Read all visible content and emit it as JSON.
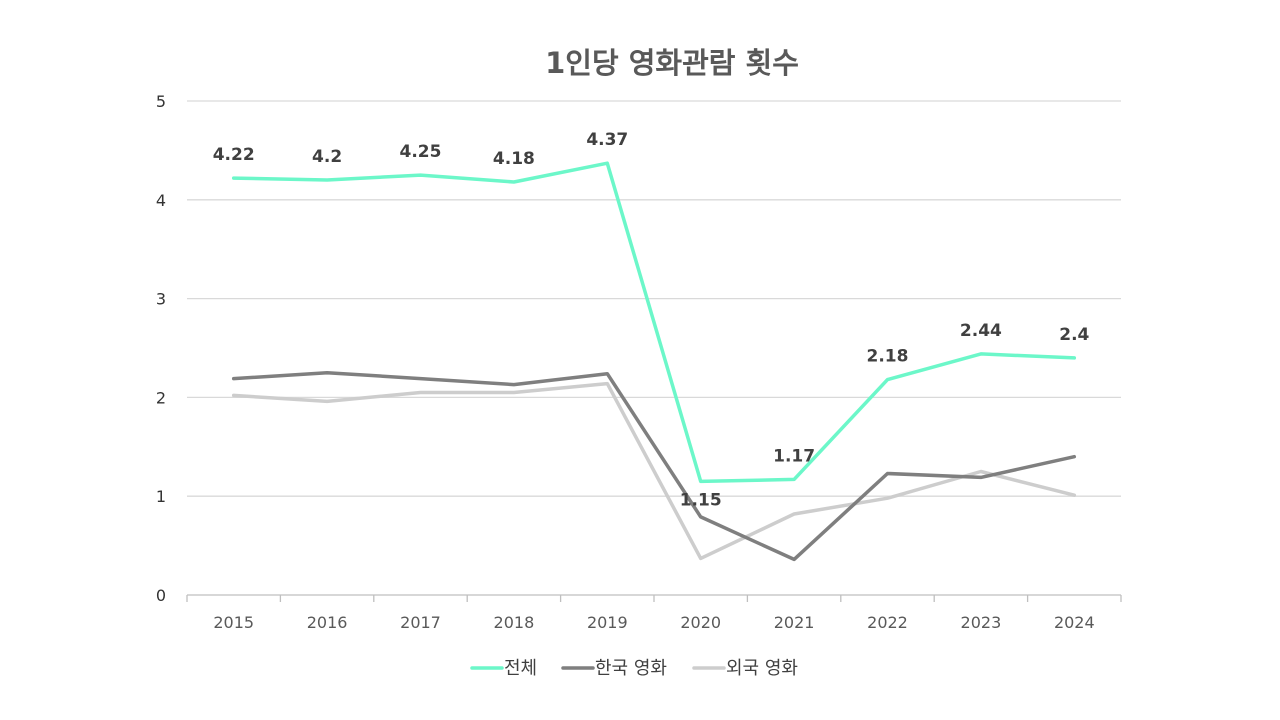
{
  "chart_data": {
    "type": "line",
    "title": "1인당 영화관람 횟수",
    "categories": [
      "2015",
      "2016",
      "2017",
      "2018",
      "2019",
      "2020",
      "2021",
      "2022",
      "2023",
      "2024"
    ],
    "ylim": [
      0,
      5
    ],
    "yticks": [
      0,
      1,
      2,
      3,
      4,
      5
    ],
    "grid": true,
    "legend_position": "bottom",
    "series": [
      {
        "name": "전체",
        "color": "#6CF7C9",
        "values": [
          4.22,
          4.2,
          4.25,
          4.18,
          4.37,
          1.15,
          1.17,
          2.18,
          2.44,
          2.4
        ],
        "data_labels": [
          "4.22",
          "4.2",
          "4.25",
          "4.18",
          "4.37",
          "1.15",
          "1.17",
          "2.18",
          "2.44",
          "2.4"
        ]
      },
      {
        "name": "한국 영화",
        "color": "#7F7F7F",
        "values": [
          2.19,
          2.25,
          2.19,
          2.13,
          2.24,
          0.79,
          0.36,
          1.23,
          1.19,
          1.4
        ]
      },
      {
        "name": "외국 영화",
        "color": "#CDCDCD",
        "values": [
          2.02,
          1.96,
          2.05,
          2.05,
          2.14,
          0.37,
          0.82,
          0.98,
          1.25,
          1.01
        ]
      }
    ]
  }
}
